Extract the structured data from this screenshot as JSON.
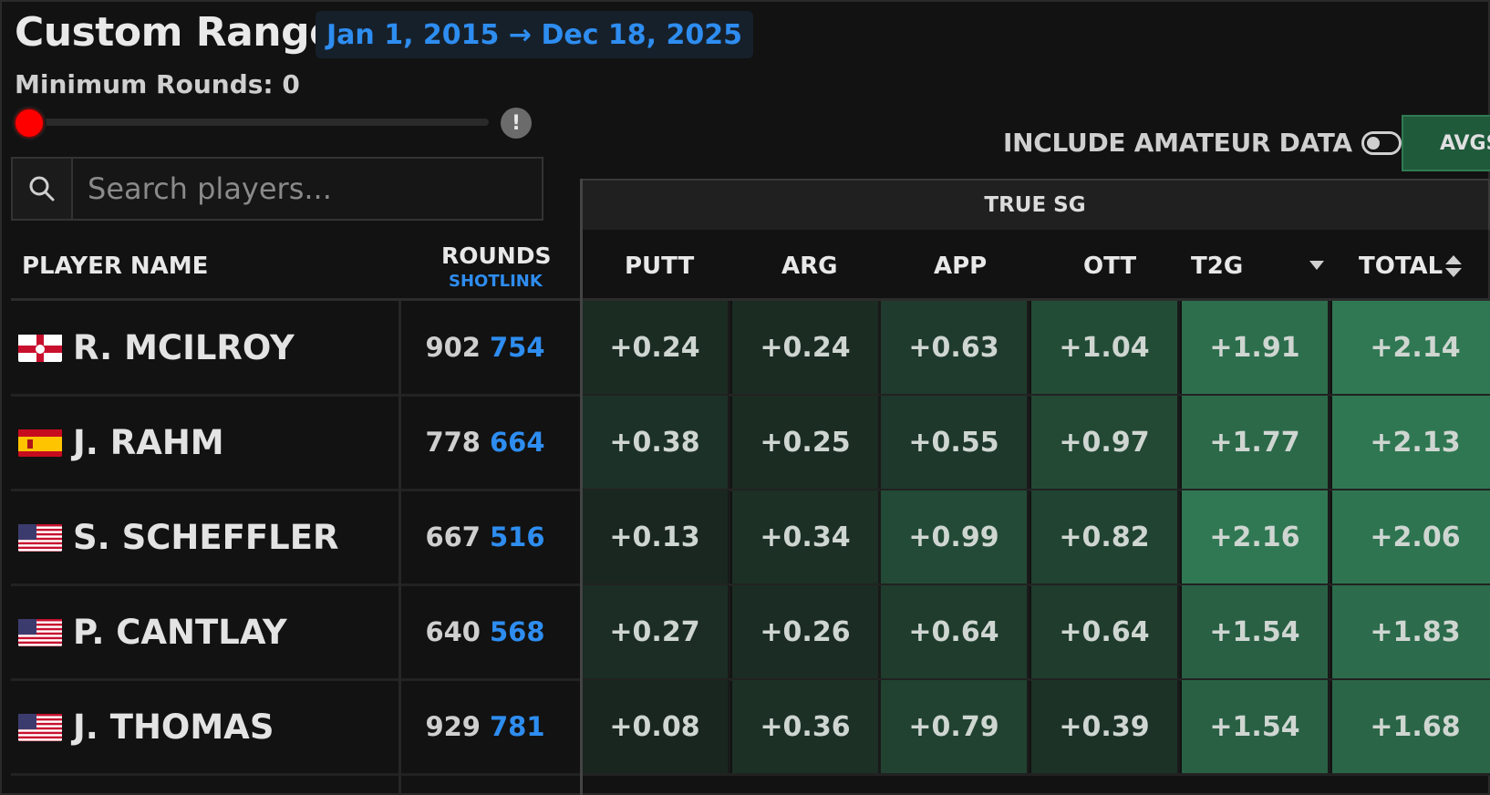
{
  "header": {
    "title": "Custom Range",
    "date_range": "Jan 1, 2015 → Dec 18, 2025",
    "min_rounds_label": "Minimum Rounds: 0",
    "min_rounds_value": 0,
    "info_glyph": "!"
  },
  "search": {
    "placeholder": "Search players...",
    "value": ""
  },
  "controls": {
    "amateur_label": "INCLUDE AMATEUR DATA",
    "amateur_enabled": false,
    "avgs_label": "AVGS"
  },
  "table": {
    "group_header": "TRUE SG",
    "columns": {
      "player": "PLAYER NAME",
      "rounds": "ROUNDS",
      "rounds_sub": "SHOTLINK",
      "putt": "PUTT",
      "arg": "ARG",
      "app": "APP",
      "ott": "OTT",
      "t2g": "T2G",
      "total": "TOTAL"
    },
    "rows": [
      {
        "flag": "northern-ireland",
        "name": "R. MCILROY",
        "rounds": "902",
        "shotlink": "754",
        "putt": "+0.24",
        "arg": "+0.24",
        "app": "+0.63",
        "ott": "+1.04",
        "t2g": "+1.91",
        "total": "+2.14"
      },
      {
        "flag": "spain",
        "name": "J. RAHM",
        "rounds": "778",
        "shotlink": "664",
        "putt": "+0.38",
        "arg": "+0.25",
        "app": "+0.55",
        "ott": "+0.97",
        "t2g": "+1.77",
        "total": "+2.13"
      },
      {
        "flag": "usa",
        "name": "S. SCHEFFLER",
        "rounds": "667",
        "shotlink": "516",
        "putt": "+0.13",
        "arg": "+0.34",
        "app": "+0.99",
        "ott": "+0.82",
        "t2g": "+2.16",
        "total": "+2.06"
      },
      {
        "flag": "usa",
        "name": "P. CANTLAY",
        "rounds": "640",
        "shotlink": "568",
        "putt": "+0.27",
        "arg": "+0.26",
        "app": "+0.64",
        "ott": "+0.64",
        "t2g": "+1.54",
        "total": "+1.83"
      },
      {
        "flag": "usa",
        "name": "J. THOMAS",
        "rounds": "929",
        "shotlink": "781",
        "putt": "+0.08",
        "arg": "+0.36",
        "app": "+0.79",
        "ott": "+0.39",
        "t2g": "+1.54",
        "total": "+1.68"
      }
    ]
  },
  "colors": {
    "accent": "#2e8df0",
    "slider_knob": "#ff0000",
    "avgs_bg": "#1f5a3a"
  }
}
